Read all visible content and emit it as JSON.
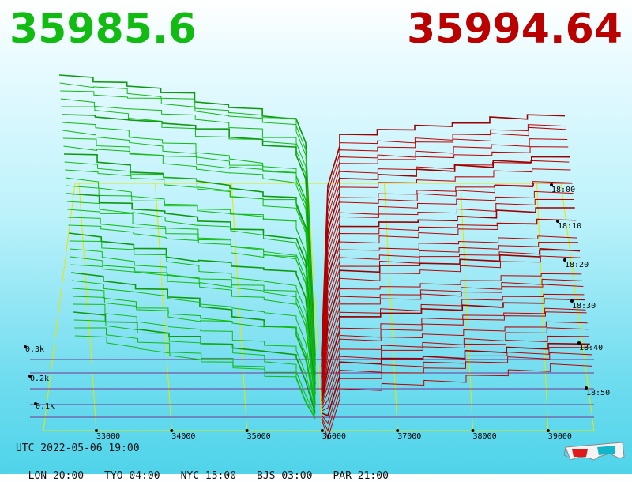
{
  "bid_price": "35985.6",
  "ask_price": "35994.64",
  "colors": {
    "bid": "#11bb11",
    "ask": "#bb0000",
    "grid": "#e6e600",
    "depth_line": "#7a0a7a"
  },
  "footer": {
    "utc": "UTC 2022-05-06 19:00",
    "zones": [
      "LON 20:00",
      "TYO 04:00",
      "NYC 15:00",
      "BJS 03:00",
      "PAR 21:00"
    ]
  },
  "icon": "3d-glasses-icon",
  "chart_data": {
    "type": "area",
    "x_ticks": [
      "33000",
      "34000",
      "35000",
      "36000",
      "37000",
      "38000",
      "39000"
    ],
    "depth_ticks": [
      "0.1k",
      "0.2k",
      "0.3k"
    ],
    "time_ticks": [
      "18:00",
      "18:10",
      "18:20",
      "18:30",
      "18:40",
      "18:50"
    ],
    "bid_price": 35985.6,
    "ask_price": 35994.64,
    "grid": true
  }
}
